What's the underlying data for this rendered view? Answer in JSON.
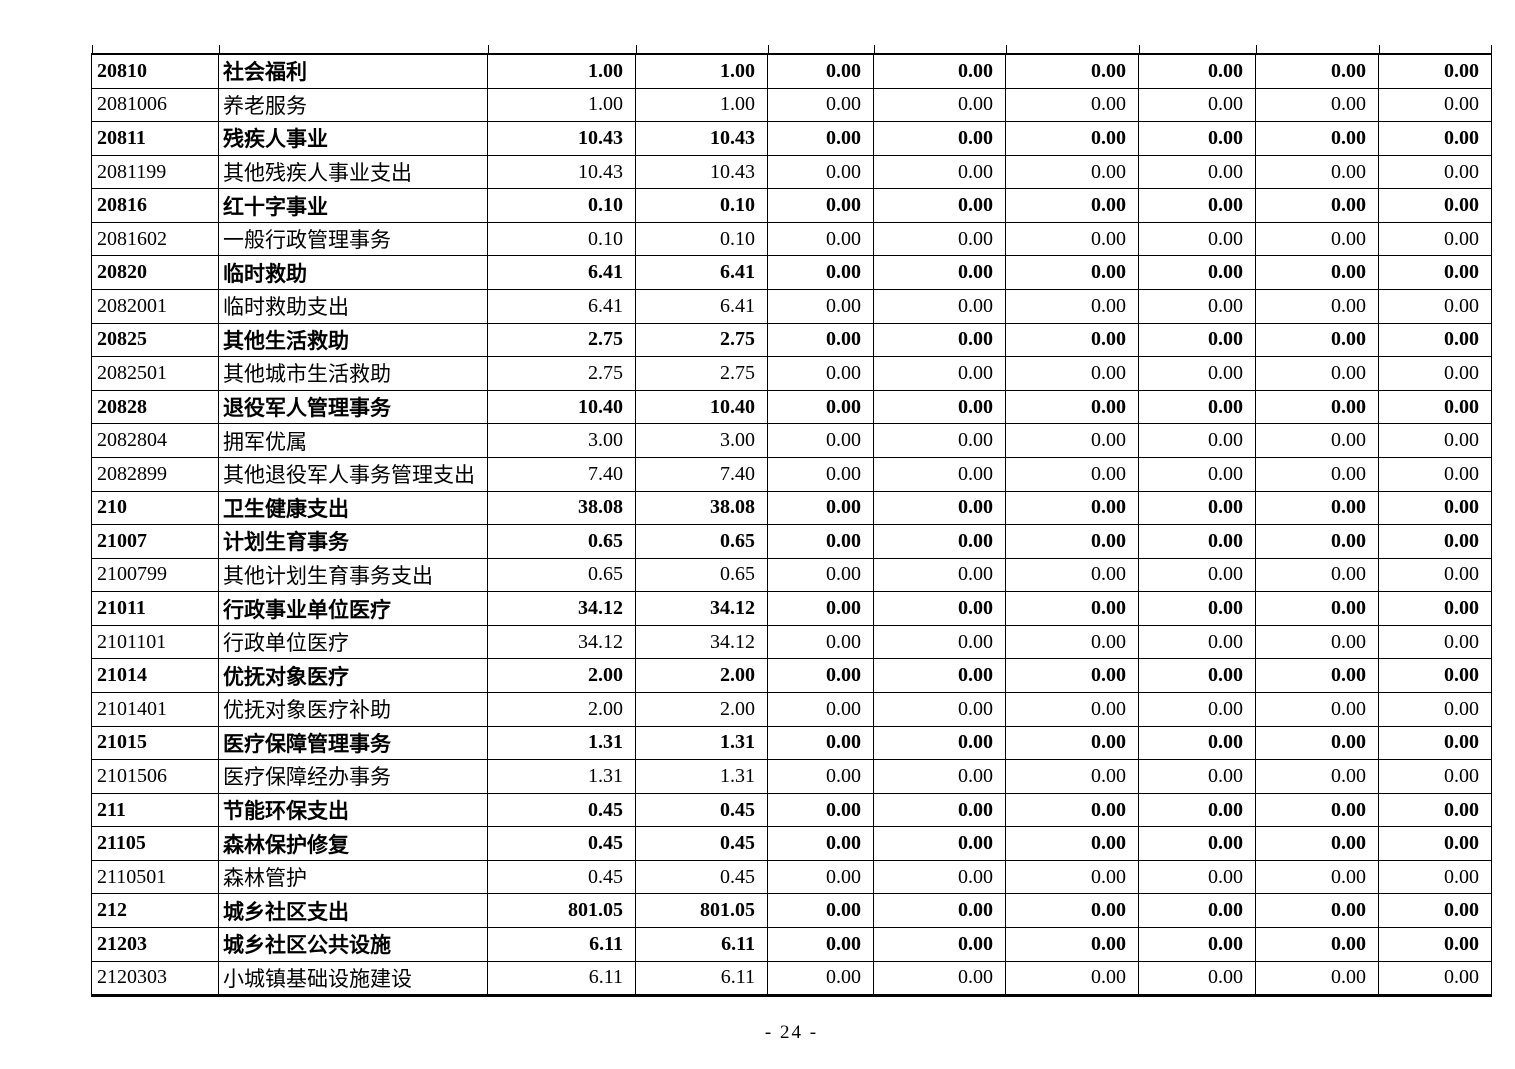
{
  "page": {
    "footer_text": "- 24 -"
  },
  "colors": {
    "text": "#000000",
    "border": "#000000",
    "background": "#ffffff"
  },
  "table": {
    "rows": [
      {
        "code": "20810",
        "name": "社会福利",
        "bold": true,
        "values": [
          "1.00",
          "1.00",
          "0.00",
          "0.00",
          "0.00",
          "0.00",
          "0.00",
          "0.00"
        ]
      },
      {
        "code": "2081006",
        "name": "养老服务",
        "bold": false,
        "values": [
          "1.00",
          "1.00",
          "0.00",
          "0.00",
          "0.00",
          "0.00",
          "0.00",
          "0.00"
        ]
      },
      {
        "code": "20811",
        "name": "残疾人事业",
        "bold": true,
        "values": [
          "10.43",
          "10.43",
          "0.00",
          "0.00",
          "0.00",
          "0.00",
          "0.00",
          "0.00"
        ]
      },
      {
        "code": "2081199",
        "name": "其他残疾人事业支出",
        "bold": false,
        "values": [
          "10.43",
          "10.43",
          "0.00",
          "0.00",
          "0.00",
          "0.00",
          "0.00",
          "0.00"
        ]
      },
      {
        "code": "20816",
        "name": "红十字事业",
        "bold": true,
        "values": [
          "0.10",
          "0.10",
          "0.00",
          "0.00",
          "0.00",
          "0.00",
          "0.00",
          "0.00"
        ]
      },
      {
        "code": "2081602",
        "name": "一般行政管理事务",
        "bold": false,
        "values": [
          "0.10",
          "0.10",
          "0.00",
          "0.00",
          "0.00",
          "0.00",
          "0.00",
          "0.00"
        ]
      },
      {
        "code": "20820",
        "name": "临时救助",
        "bold": true,
        "values": [
          "6.41",
          "6.41",
          "0.00",
          "0.00",
          "0.00",
          "0.00",
          "0.00",
          "0.00"
        ]
      },
      {
        "code": "2082001",
        "name": "临时救助支出",
        "bold": false,
        "values": [
          "6.41",
          "6.41",
          "0.00",
          "0.00",
          "0.00",
          "0.00",
          "0.00",
          "0.00"
        ]
      },
      {
        "code": "20825",
        "name": "其他生活救助",
        "bold": true,
        "values": [
          "2.75",
          "2.75",
          "0.00",
          "0.00",
          "0.00",
          "0.00",
          "0.00",
          "0.00"
        ]
      },
      {
        "code": "2082501",
        "name": "其他城市生活救助",
        "bold": false,
        "values": [
          "2.75",
          "2.75",
          "0.00",
          "0.00",
          "0.00",
          "0.00",
          "0.00",
          "0.00"
        ]
      },
      {
        "code": "20828",
        "name": "退役军人管理事务",
        "bold": true,
        "values": [
          "10.40",
          "10.40",
          "0.00",
          "0.00",
          "0.00",
          "0.00",
          "0.00",
          "0.00"
        ]
      },
      {
        "code": "2082804",
        "name": "拥军优属",
        "bold": false,
        "values": [
          "3.00",
          "3.00",
          "0.00",
          "0.00",
          "0.00",
          "0.00",
          "0.00",
          "0.00"
        ]
      },
      {
        "code": "2082899",
        "name": "其他退役军人事务管理支出",
        "bold": false,
        "values": [
          "7.40",
          "7.40",
          "0.00",
          "0.00",
          "0.00",
          "0.00",
          "0.00",
          "0.00"
        ]
      },
      {
        "code": "210",
        "name": "卫生健康支出",
        "bold": true,
        "values": [
          "38.08",
          "38.08",
          "0.00",
          "0.00",
          "0.00",
          "0.00",
          "0.00",
          "0.00"
        ]
      },
      {
        "code": "21007",
        "name": "计划生育事务",
        "bold": true,
        "values": [
          "0.65",
          "0.65",
          "0.00",
          "0.00",
          "0.00",
          "0.00",
          "0.00",
          "0.00"
        ]
      },
      {
        "code": "2100799",
        "name": "其他计划生育事务支出",
        "bold": false,
        "values": [
          "0.65",
          "0.65",
          "0.00",
          "0.00",
          "0.00",
          "0.00",
          "0.00",
          "0.00"
        ]
      },
      {
        "code": "21011",
        "name": "行政事业单位医疗",
        "bold": true,
        "values": [
          "34.12",
          "34.12",
          "0.00",
          "0.00",
          "0.00",
          "0.00",
          "0.00",
          "0.00"
        ]
      },
      {
        "code": "2101101",
        "name": "行政单位医疗",
        "bold": false,
        "values": [
          "34.12",
          "34.12",
          "0.00",
          "0.00",
          "0.00",
          "0.00",
          "0.00",
          "0.00"
        ]
      },
      {
        "code": "21014",
        "name": "优抚对象医疗",
        "bold": true,
        "values": [
          "2.00",
          "2.00",
          "0.00",
          "0.00",
          "0.00",
          "0.00",
          "0.00",
          "0.00"
        ]
      },
      {
        "code": "2101401",
        "name": "优抚对象医疗补助",
        "bold": false,
        "values": [
          "2.00",
          "2.00",
          "0.00",
          "0.00",
          "0.00",
          "0.00",
          "0.00",
          "0.00"
        ]
      },
      {
        "code": "21015",
        "name": "医疗保障管理事务",
        "bold": true,
        "values": [
          "1.31",
          "1.31",
          "0.00",
          "0.00",
          "0.00",
          "0.00",
          "0.00",
          "0.00"
        ]
      },
      {
        "code": "2101506",
        "name": "医疗保障经办事务",
        "bold": false,
        "values": [
          "1.31",
          "1.31",
          "0.00",
          "0.00",
          "0.00",
          "0.00",
          "0.00",
          "0.00"
        ]
      },
      {
        "code": "211",
        "name": "节能环保支出",
        "bold": true,
        "values": [
          "0.45",
          "0.45",
          "0.00",
          "0.00",
          "0.00",
          "0.00",
          "0.00",
          "0.00"
        ]
      },
      {
        "code": "21105",
        "name": "森林保护修复",
        "bold": true,
        "values": [
          "0.45",
          "0.45",
          "0.00",
          "0.00",
          "0.00",
          "0.00",
          "0.00",
          "0.00"
        ]
      },
      {
        "code": "2110501",
        "name": "森林管护",
        "bold": false,
        "values": [
          "0.45",
          "0.45",
          "0.00",
          "0.00",
          "0.00",
          "0.00",
          "0.00",
          "0.00"
        ]
      },
      {
        "code": "212",
        "name": "城乡社区支出",
        "bold": true,
        "values": [
          "801.05",
          "801.05",
          "0.00",
          "0.00",
          "0.00",
          "0.00",
          "0.00",
          "0.00"
        ]
      },
      {
        "code": "21203",
        "name": "城乡社区公共设施",
        "bold": true,
        "values": [
          "6.11",
          "6.11",
          "0.00",
          "0.00",
          "0.00",
          "0.00",
          "0.00",
          "0.00"
        ]
      },
      {
        "code": "2120303",
        "name": "小城镇基础设施建设",
        "bold": false,
        "values": [
          "6.11",
          "6.11",
          "0.00",
          "0.00",
          "0.00",
          "0.00",
          "0.00",
          "0.00"
        ]
      }
    ]
  }
}
